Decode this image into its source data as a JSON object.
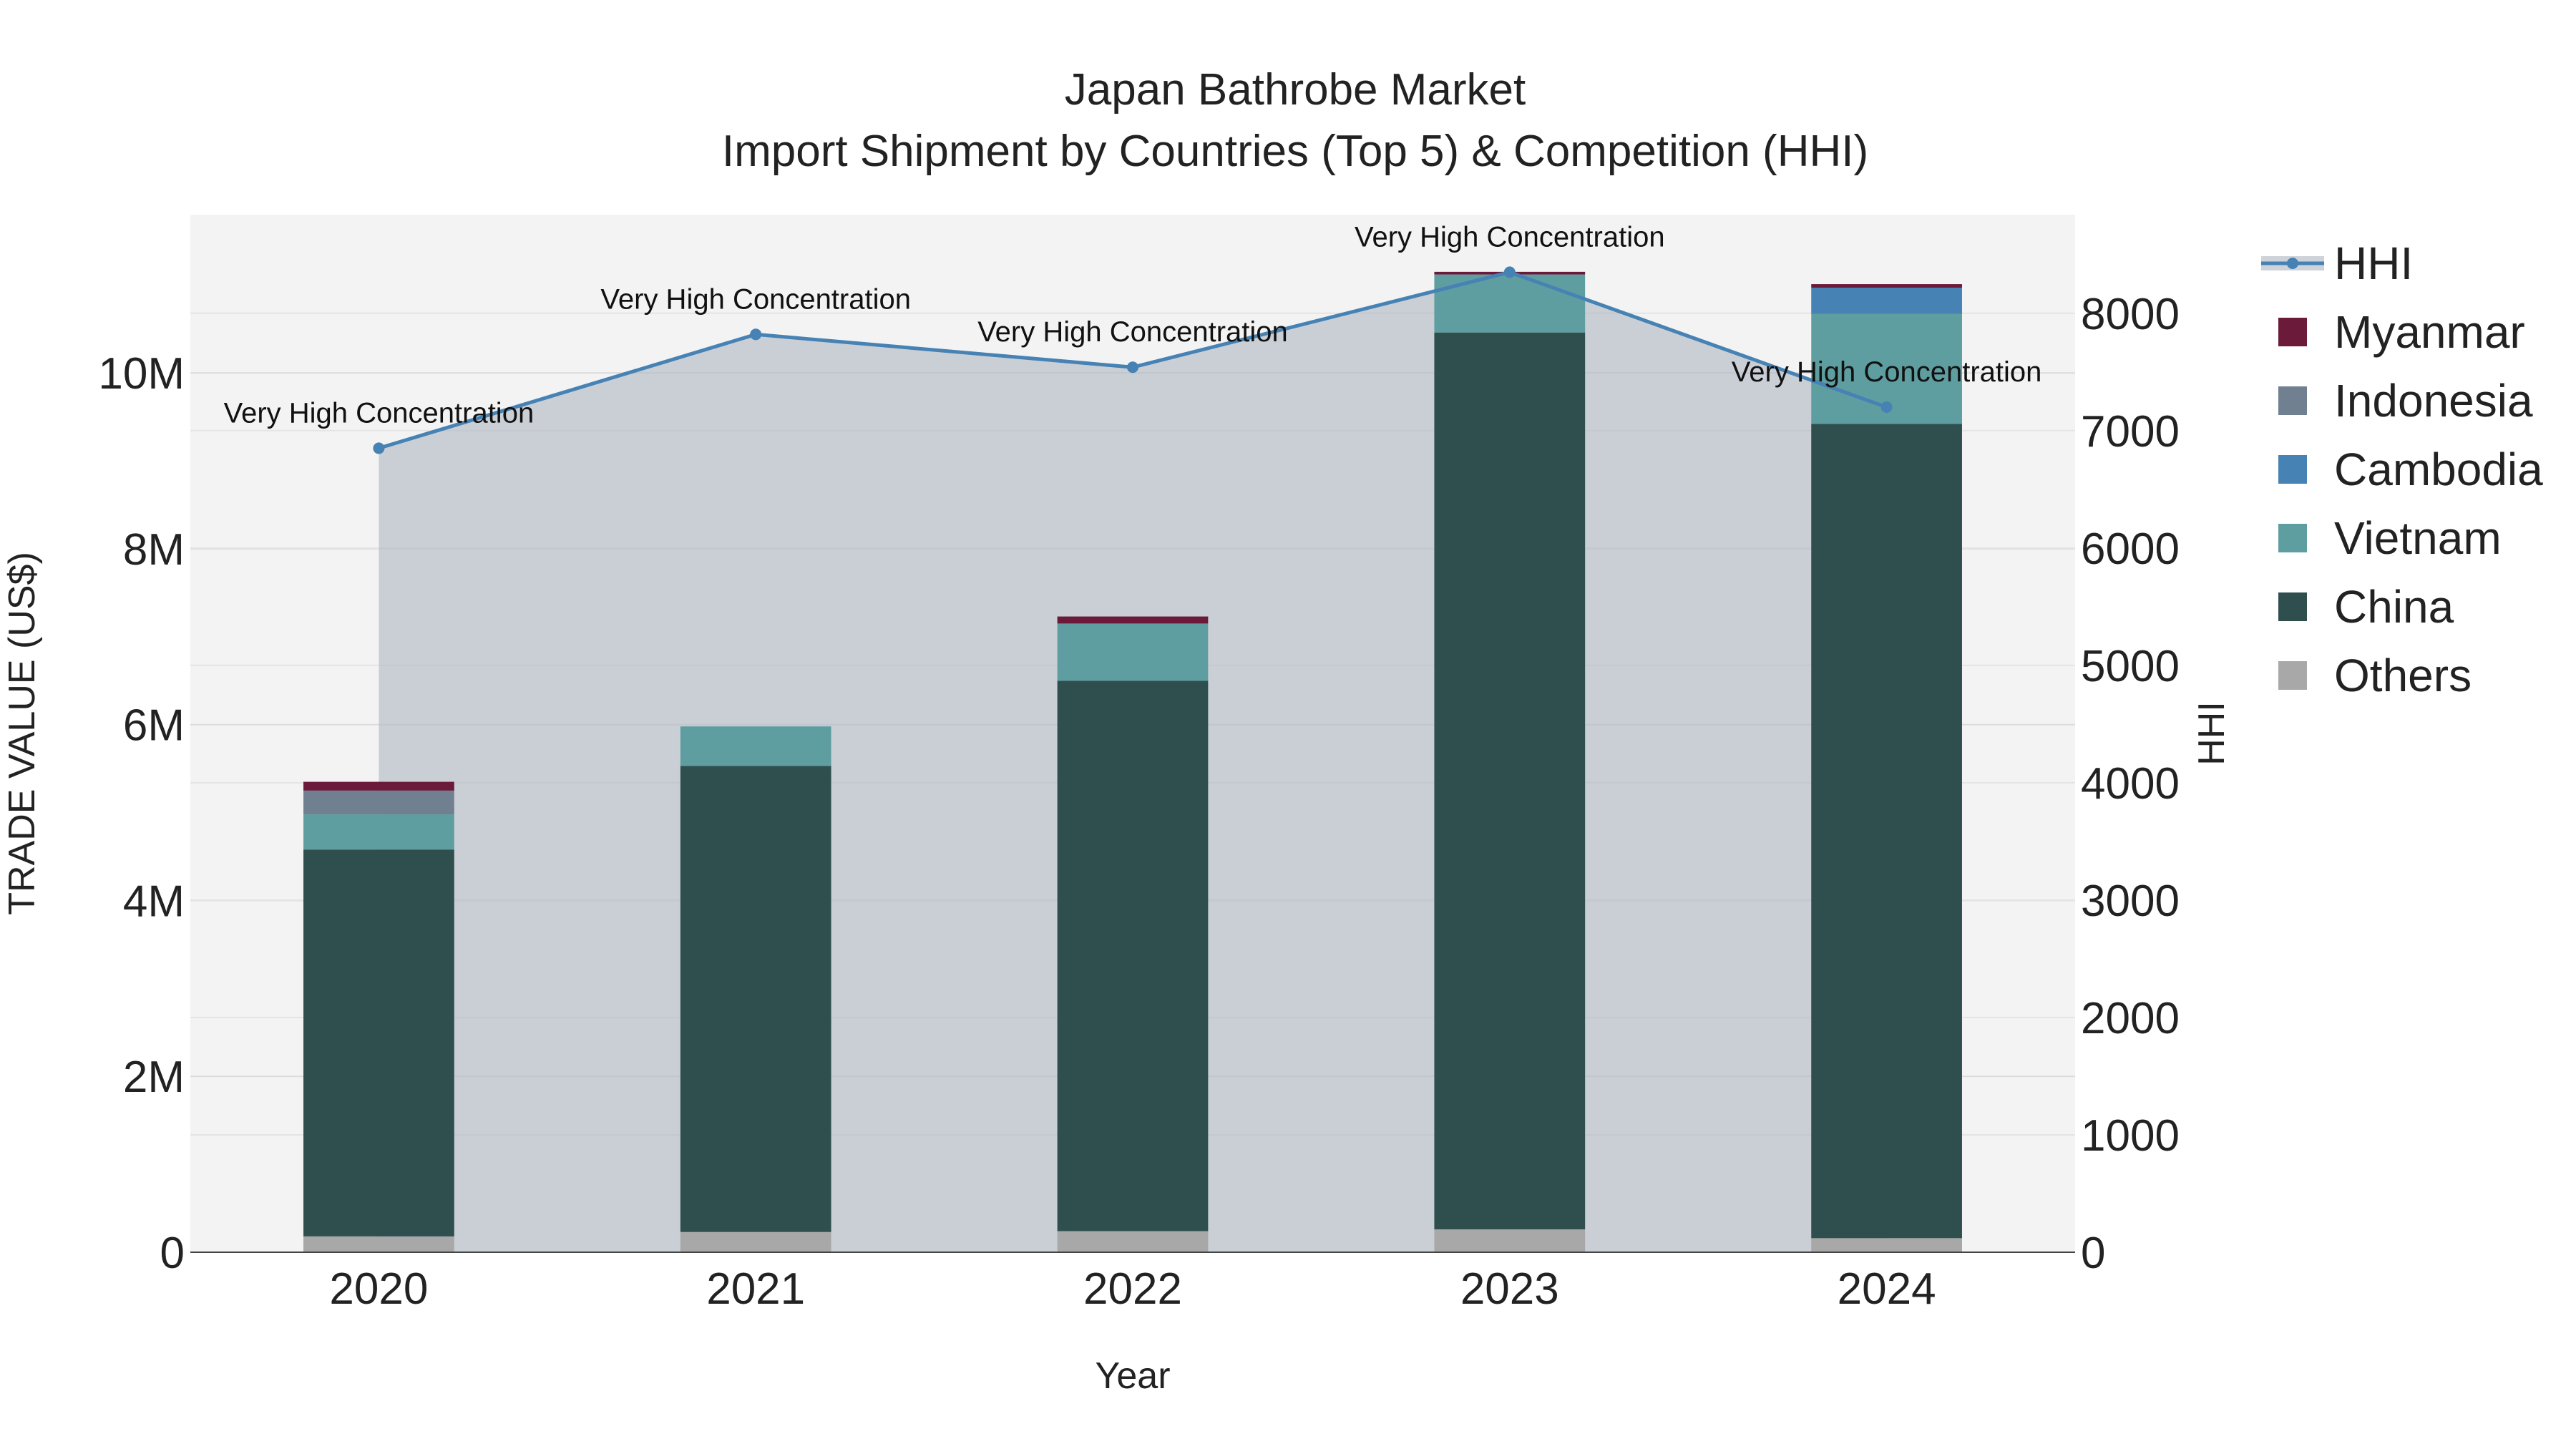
{
  "chart_data": {
    "type": "bar",
    "title": "Japan Bathrobe Market",
    "subtitle": "Import Shipment by Countries (Top 5) & Competition (HHI)",
    "xlabel": "Year",
    "ylabel": "TRADE VALUE (US$)",
    "y2label": "HHI",
    "categories": [
      "2020",
      "2021",
      "2022",
      "2023",
      "2024"
    ],
    "ylim": [
      0,
      11800000
    ],
    "y2lim": [
      0,
      8840
    ],
    "y_ticks": [
      {
        "value": 0,
        "label": "0"
      },
      {
        "value": 2000000,
        "label": "2M"
      },
      {
        "value": 4000000,
        "label": "4M"
      },
      {
        "value": 6000000,
        "label": "6M"
      },
      {
        "value": 8000000,
        "label": "8M"
      },
      {
        "value": 10000000,
        "label": "10M"
      }
    ],
    "y2_ticks": [
      0,
      1000,
      2000,
      3000,
      4000,
      5000,
      6000,
      7000,
      8000
    ],
    "stack_order": [
      "Others",
      "China",
      "Vietnam",
      "Cambodia",
      "Indonesia",
      "Myanmar"
    ],
    "series": [
      {
        "name": "Others",
        "color": "#a8a8a8",
        "values": [
          180000,
          230000,
          240000,
          260000,
          160000
        ]
      },
      {
        "name": "China",
        "color": "#2f4f4f",
        "values": [
          4400000,
          5300000,
          6260000,
          10200000,
          9260000
        ]
      },
      {
        "name": "Vietnam",
        "color": "#5f9ea0",
        "values": [
          400000,
          450000,
          650000,
          660000,
          1250000
        ]
      },
      {
        "name": "Cambodia",
        "color": "#4682b4",
        "values": [
          0,
          0,
          0,
          0,
          300000
        ]
      },
      {
        "name": "Indonesia",
        "color": "#708090",
        "values": [
          270000,
          0,
          0,
          0,
          0
        ]
      },
      {
        "name": "Myanmar",
        "color": "#6b1a3a",
        "values": [
          100000,
          0,
          80000,
          30000,
          40000
        ]
      }
    ],
    "hhi": {
      "name": "HHI",
      "color": "#4682b4",
      "values": [
        6850,
        7820,
        7540,
        8350,
        7200
      ],
      "annotations": [
        "Very High Concentration",
        "Very High Concentration",
        "Very High Concentration",
        "Very High Concentration",
        "Very High Concentration"
      ]
    },
    "legend": [
      "HHI",
      "Myanmar",
      "Indonesia",
      "Cambodia",
      "Vietnam",
      "China",
      "Others"
    ],
    "legend_position": "right",
    "grid": true
  }
}
